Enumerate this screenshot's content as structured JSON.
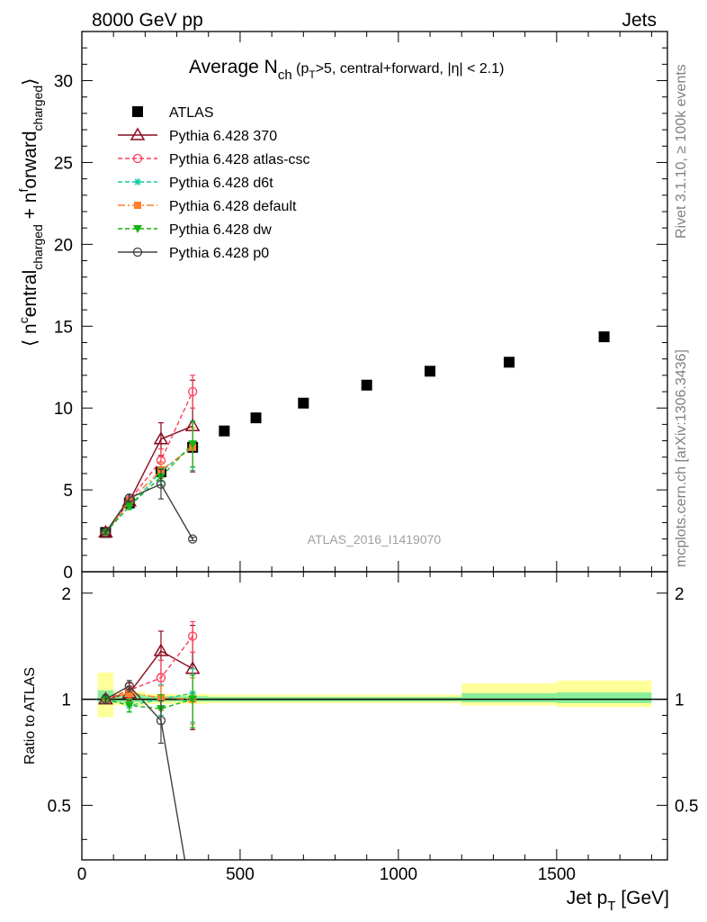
{
  "header": {
    "left": "8000 GeV pp",
    "right": "Jets"
  },
  "side": {
    "rivet": "Rivet 3.1.10, ≥ 100k events",
    "mcplots": "mcplots.cern.ch [arXiv:1306.3436]"
  },
  "main_title": {
    "prefix": "Average N",
    "sub": "ch",
    "rest1": " (p",
    "rest1_sub": "T",
    "rest2": ">5, central+forward, |η| < 2.1)"
  },
  "watermark": "ATLAS_2016_I1419070",
  "ylabel_parts": [
    "⟨ n",
    "c",
    "entral",
    "charged",
    " + n",
    "f",
    "orward",
    "charged",
    "⟩"
  ],
  "ratio_ylabel": "Ratio to ATLAS",
  "xlabel": {
    "text": "Jet p",
    "sub": "T",
    "unit": " [GeV]"
  },
  "legend": [
    {
      "name": "ATLAS",
      "color": "#000000",
      "marker": "square",
      "line": "none"
    },
    {
      "name": "Pythia 6.428 370",
      "color": "#8b0a1e",
      "marker": "triangle-open",
      "line": "solid"
    },
    {
      "name": "Pythia 6.428 atlas-csc",
      "color": "#ff3c5a",
      "marker": "circle-open",
      "line": "dashed"
    },
    {
      "name": "Pythia 6.428 d6t",
      "color": "#14c8a0",
      "marker": "star",
      "line": "dashed"
    },
    {
      "name": "Pythia 6.428 default",
      "color": "#ff7f2a",
      "marker": "square-small",
      "line": "dashdot"
    },
    {
      "name": "Pythia 6.428 dw",
      "color": "#14b414",
      "marker": "triangle-down",
      "line": "dashed"
    },
    {
      "name": "Pythia 6.428 p0",
      "color": "#404040",
      "marker": "circle-open",
      "line": "solid"
    }
  ],
  "chart_data": [
    {
      "type": "scatter",
      "panel": "main",
      "xlim": [
        0,
        1850
      ],
      "ylim": [
        0,
        33
      ],
      "xticks": [
        0,
        500,
        1000,
        1500
      ],
      "yticks": [
        0,
        5,
        10,
        15,
        20,
        25,
        30
      ],
      "ytick_labels": [
        "0",
        "5",
        "10",
        "15",
        "20",
        "25",
        "30"
      ],
      "series": [
        {
          "name": "ATLAS",
          "x": [
            75,
            150,
            250,
            350,
            450,
            550,
            700,
            900,
            1100,
            1350,
            1650
          ],
          "y": [
            2.4,
            4.2,
            6.1,
            7.6,
            8.6,
            9.4,
            10.3,
            11.4,
            12.25,
            12.8,
            14.35
          ]
        },
        {
          "name": "Pythia 6.428 370",
          "x": [
            75,
            150,
            250,
            350
          ],
          "y": [
            2.4,
            4.3,
            8.1,
            8.9
          ],
          "err": [
            0.1,
            0.2,
            1.0,
            2.8
          ]
        },
        {
          "name": "Pythia 6.428 atlas-csc",
          "x": [
            75,
            150,
            250,
            350
          ],
          "y": [
            2.4,
            4.35,
            6.8,
            11.0
          ],
          "err": [
            0.1,
            0.2,
            0.7,
            1.0
          ]
        },
        {
          "name": "Pythia 6.428 d6t",
          "x": [
            75,
            150,
            250,
            350
          ],
          "y": [
            2.4,
            4.0,
            6.1,
            7.7
          ],
          "err": [
            0.1,
            0.2,
            0.6,
            1.5
          ]
        },
        {
          "name": "Pythia 6.428 default",
          "x": [
            75,
            150,
            250,
            350
          ],
          "y": [
            2.4,
            4.3,
            6.2,
            7.6
          ],
          "err": [
            0.1,
            0.2,
            0.5,
            1.2
          ]
        },
        {
          "name": "Pythia 6.428 dw",
          "x": [
            75,
            150,
            250,
            350
          ],
          "y": [
            2.4,
            4.0,
            5.8,
            7.8
          ],
          "err": [
            0.1,
            0.2,
            0.5,
            1.4
          ]
        },
        {
          "name": "Pythia 6.428 p0",
          "x": [
            75,
            150,
            250,
            350
          ],
          "y": [
            2.4,
            4.5,
            5.35,
            2.0
          ],
          "err": [
            0.1,
            0.2,
            0.9,
            0.1
          ]
        }
      ]
    },
    {
      "type": "scatter",
      "panel": "ratio",
      "xlim": [
        0,
        1850
      ],
      "ylim": [
        0.35,
        2.3
      ],
      "xticks": [
        0,
        500,
        1000,
        1500
      ],
      "xtick_labels": [
        "0",
        "500",
        "1000",
        "1500"
      ],
      "yticks": [
        0.5,
        1,
        2
      ],
      "ytick_labels": [
        "0.5",
        "1",
        "2"
      ],
      "bands": [
        {
          "x0": 50,
          "x1": 100,
          "inner": [
            0.97,
            1.06
          ],
          "outer": [
            0.89,
            1.19
          ]
        },
        {
          "x0": 100,
          "x1": 200,
          "inner": [
            0.98,
            1.03
          ],
          "outer": [
            0.96,
            1.05
          ]
        },
        {
          "x0": 200,
          "x1": 300,
          "inner": [
            0.985,
            1.02
          ],
          "outer": [
            0.97,
            1.035
          ]
        },
        {
          "x0": 300,
          "x1": 400,
          "inner": [
            0.985,
            1.02
          ],
          "outer": [
            0.97,
            1.035
          ]
        },
        {
          "x0": 400,
          "x1": 600,
          "inner": [
            0.985,
            1.015
          ],
          "outer": [
            0.975,
            1.03
          ]
        },
        {
          "x0": 600,
          "x1": 1200,
          "inner": [
            0.985,
            1.015
          ],
          "outer": [
            0.975,
            1.03
          ]
        },
        {
          "x0": 1200,
          "x1": 1500,
          "inner": [
            0.98,
            1.04
          ],
          "outer": [
            0.96,
            1.11
          ]
        },
        {
          "x0": 1500,
          "x1": 1800,
          "inner": [
            0.975,
            1.045
          ],
          "outer": [
            0.95,
            1.13
          ]
        }
      ],
      "series": [
        {
          "name": "Pythia 6.428 370",
          "x": [
            75,
            150,
            250,
            350
          ],
          "y": [
            1.0,
            1.04,
            1.37,
            1.22
          ],
          "err": [
            0.03,
            0.05,
            0.19,
            0.4
          ]
        },
        {
          "name": "Pythia 6.428 atlas-csc",
          "x": [
            75,
            150,
            250,
            350
          ],
          "y": [
            1.0,
            1.06,
            1.15,
            1.51
          ],
          "err": [
            0.03,
            0.05,
            0.14,
            0.15
          ]
        },
        {
          "name": "Pythia 6.428 d6t",
          "x": [
            75,
            150,
            250,
            350
          ],
          "y": [
            1.0,
            0.96,
            1.0,
            1.04
          ],
          "err": [
            0.03,
            0.04,
            0.1,
            0.18
          ]
        },
        {
          "name": "Pythia 6.428 default",
          "x": [
            75,
            150,
            250,
            350
          ],
          "y": [
            1.0,
            1.04,
            1.01,
            1.0
          ],
          "err": [
            0.03,
            0.04,
            0.08,
            0.15
          ]
        },
        {
          "name": "Pythia 6.428 dw",
          "x": [
            75,
            150,
            250,
            350
          ],
          "y": [
            1.0,
            0.96,
            0.94,
            1.0
          ],
          "err": [
            0.03,
            0.04,
            0.09,
            0.17
          ]
        },
        {
          "name": "Pythia 6.428 p0",
          "x": [
            75,
            150,
            250,
            350
          ],
          "y": [
            1.0,
            1.09,
            0.87,
            0.26
          ],
          "err": [
            0.03,
            0.04,
            0.12,
            0.02
          ]
        }
      ]
    }
  ]
}
